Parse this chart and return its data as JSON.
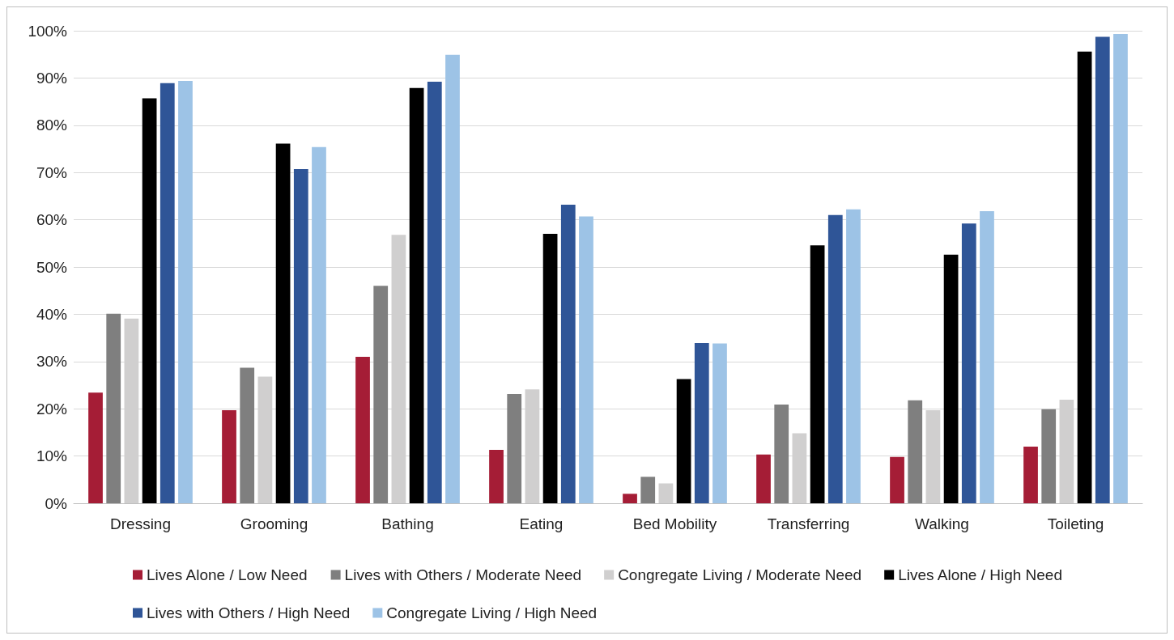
{
  "chart_data": {
    "type": "bar",
    "categories": [
      "Dressing",
      "Grooming",
      "Bathing",
      "Eating",
      "Bed Mobility",
      "Transferring",
      "Walking",
      "Toileting"
    ],
    "series": [
      {
        "name": "Lives Alone / Low Need",
        "color": "#a51d36",
        "values": [
          23.4,
          19.7,
          31.0,
          11.3,
          2.0,
          10.3,
          9.8,
          12.0
        ]
      },
      {
        "name": "Lives with Others / Moderate Need",
        "color": "#7f7f7f",
        "values": [
          40.1,
          28.7,
          46.0,
          23.1,
          5.6,
          20.9,
          21.8,
          19.9
        ]
      },
      {
        "name": "Congregate Living / Moderate Need",
        "color": "#d0cfcf",
        "values": [
          39.1,
          26.8,
          56.8,
          24.1,
          4.2,
          14.8,
          19.7,
          21.9
        ]
      },
      {
        "name": "Lives Alone / High Need",
        "color": "#000000",
        "values": [
          85.7,
          76.1,
          87.9,
          57.0,
          26.3,
          54.6,
          52.6,
          95.6
        ]
      },
      {
        "name": "Lives with Others / High Need",
        "color": "#2f5597",
        "values": [
          88.9,
          70.7,
          89.2,
          63.2,
          33.9,
          61.0,
          59.2,
          98.7
        ]
      },
      {
        "name": "Congregate Living / High Need",
        "color": "#9dc3e6",
        "values": [
          89.4,
          75.4,
          94.9,
          60.7,
          33.8,
          62.2,
          61.8,
          99.3
        ]
      }
    ],
    "ylim": [
      0,
      100
    ],
    "yticks": [
      {
        "value": 0,
        "label": "0%"
      },
      {
        "value": 10,
        "label": "10%"
      },
      {
        "value": 20,
        "label": "20%"
      },
      {
        "value": 30,
        "label": "30%"
      },
      {
        "value": 40,
        "label": "40%"
      },
      {
        "value": 50,
        "label": "50%"
      },
      {
        "value": 60,
        "label": "60%"
      },
      {
        "value": 70,
        "label": "70%"
      },
      {
        "value": 80,
        "label": "80%"
      },
      {
        "value": 90,
        "label": "90%"
      },
      {
        "value": 100,
        "label": "100%"
      }
    ],
    "grid": "y",
    "legend": "bottom"
  }
}
